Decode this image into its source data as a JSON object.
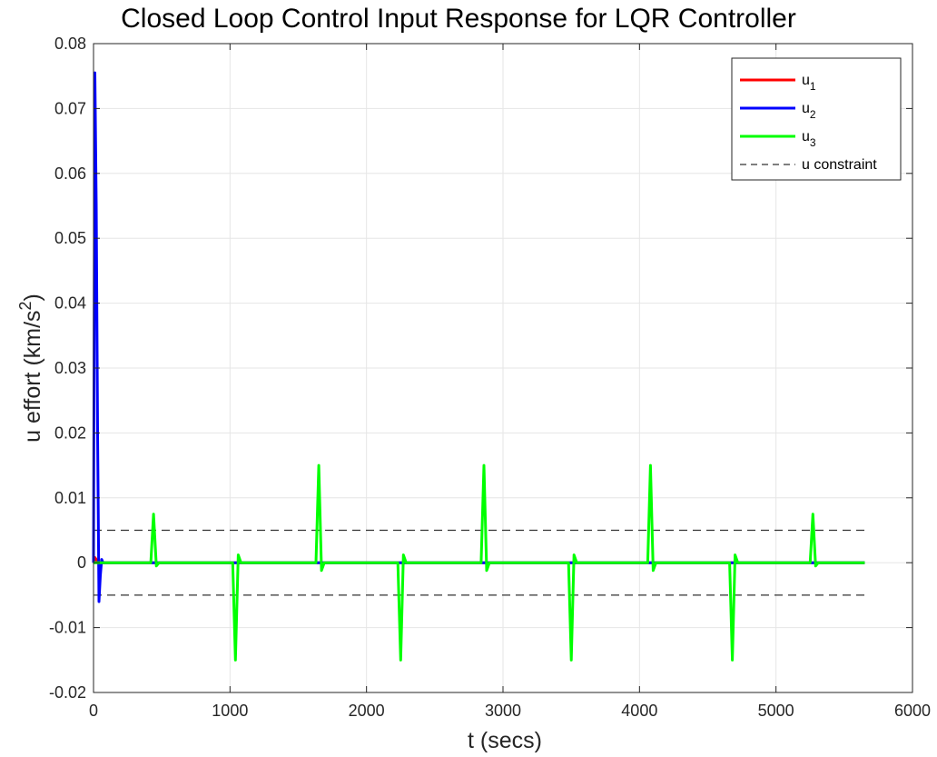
{
  "chart_data": {
    "type": "line",
    "title": "Closed Loop Control Input Response for LQR Controller",
    "xlabel": "t (secs)",
    "ylabel": "u effort (km/s",
    "ylabel_sup": "2",
    "ylabel_end": ")",
    "xlim": [
      0,
      6000
    ],
    "ylim": [
      -0.02,
      0.08
    ],
    "xticks": [
      0,
      1000,
      2000,
      3000,
      4000,
      5000,
      6000
    ],
    "xtick_labels": [
      "0",
      "1000",
      "2000",
      "3000",
      "4000",
      "5000",
      "6000"
    ],
    "yticks": [
      -0.02,
      -0.01,
      0,
      0.01,
      0.02,
      0.03,
      0.04,
      0.05,
      0.06,
      0.07,
      0.08
    ],
    "ytick_labels": [
      "-0.02",
      "-0.01",
      "0",
      "0.01",
      "0.02",
      "0.03",
      "0.04",
      "0.05",
      "0.06",
      "0.07",
      "0.08"
    ],
    "grid": true,
    "legend_position": "top-right",
    "series": [
      {
        "name": "u",
        "subscript": "1",
        "color": "#ff0000",
        "style": "solid",
        "x": [
          0,
          10,
          20,
          30,
          40,
          5650
        ],
        "y": [
          0,
          0.0008,
          0.0005,
          0,
          0,
          0
        ]
      },
      {
        "name": "u",
        "subscript": "2",
        "color": "#0000ff",
        "style": "solid",
        "x": [
          0,
          10,
          20,
          30,
          40,
          50,
          60,
          70,
          80,
          5650
        ],
        "y": [
          0,
          0.0755,
          0.055,
          0.02,
          -0.006,
          -0.002,
          0.0005,
          0,
          0,
          0
        ]
      },
      {
        "name": "u",
        "subscript": "3",
        "color": "#00ff00",
        "style": "solid",
        "x": [
          0,
          420,
          440,
          460,
          480,
          1020,
          1040,
          1060,
          1080,
          1630,
          1650,
          1670,
          1690,
          2230,
          2250,
          2270,
          2290,
          2840,
          2860,
          2880,
          2900,
          3480,
          3500,
          3520,
          3540,
          4060,
          4080,
          4100,
          4120,
          4660,
          4680,
          4700,
          4720,
          5250,
          5270,
          5290,
          5310,
          5650
        ],
        "y": [
          0,
          0,
          0.0075,
          -0.0005,
          0,
          0,
          -0.015,
          0.0012,
          0,
          0,
          0.015,
          -0.0012,
          0,
          0,
          -0.015,
          0.0012,
          0,
          0,
          0.015,
          -0.0012,
          0,
          0,
          -0.015,
          0.0012,
          0,
          0,
          0.015,
          -0.0012,
          0,
          0,
          -0.015,
          0.0012,
          0,
          0,
          0.0075,
          -0.0005,
          0,
          0
        ]
      },
      {
        "name": "u constraint",
        "color": "#333333",
        "style": "dashed",
        "x": [
          0,
          5650
        ],
        "y": [
          0.005,
          0.005
        ],
        "x2": [
          0,
          5650
        ],
        "y2": [
          -0.005,
          -0.005
        ]
      }
    ]
  }
}
